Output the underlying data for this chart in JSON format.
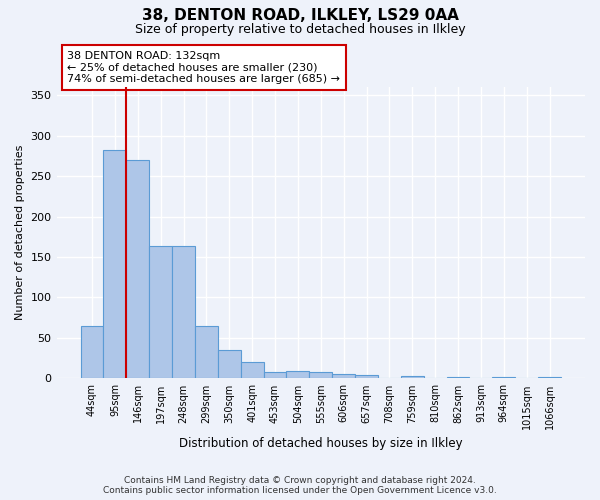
{
  "title": "38, DENTON ROAD, ILKLEY, LS29 0AA",
  "subtitle": "Size of property relative to detached houses in Ilkley",
  "xlabel": "Distribution of detached houses by size in Ilkley",
  "ylabel": "Number of detached properties",
  "footer_line1": "Contains HM Land Registry data © Crown copyright and database right 2024.",
  "footer_line2": "Contains public sector information licensed under the Open Government Licence v3.0.",
  "categories": [
    "44sqm",
    "95sqm",
    "146sqm",
    "197sqm",
    "248sqm",
    "299sqm",
    "350sqm",
    "401sqm",
    "453sqm",
    "504sqm",
    "555sqm",
    "606sqm",
    "657sqm",
    "708sqm",
    "759sqm",
    "810sqm",
    "862sqm",
    "913sqm",
    "964sqm",
    "1015sqm",
    "1066sqm"
  ],
  "values": [
    65,
    282,
    270,
    163,
    163,
    65,
    35,
    20,
    8,
    9,
    8,
    5,
    4,
    0,
    3,
    0,
    2,
    0,
    2,
    0,
    2
  ],
  "bar_color": "#aec6e8",
  "bar_edge_color": "#5b9bd5",
  "annotation_title": "38 DENTON ROAD: 132sqm",
  "annotation_line2": "← 25% of detached houses are smaller (230)",
  "annotation_line3": "74% of semi-detached houses are larger (685) →",
  "vline_color": "#cc0000",
  "annotation_box_color": "#ffffff",
  "annotation_box_edge": "#cc0000",
  "ylim": [
    0,
    360
  ],
  "yticks": [
    0,
    50,
    100,
    150,
    200,
    250,
    300,
    350
  ],
  "background_color": "#eef2fa",
  "grid_color": "#ffffff"
}
